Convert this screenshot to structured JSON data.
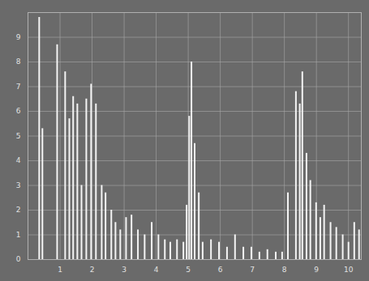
{
  "chart_data": {
    "type": "stem",
    "x": [
      0.35,
      0.45,
      0.91,
      1.16,
      1.29,
      1.41,
      1.54,
      1.67,
      1.82,
      1.97,
      2.12,
      2.3,
      2.42,
      2.6,
      2.73,
      2.88,
      3.06,
      3.23,
      3.43,
      3.64,
      3.86,
      4.07,
      4.27,
      4.44,
      4.65,
      4.85,
      4.95,
      5.03,
      5.1,
      5.2,
      5.33,
      5.45,
      5.71,
      5.96,
      6.21,
      6.46,
      6.72,
      6.97,
      7.22,
      7.47,
      7.73,
      7.93,
      8.11,
      8.36,
      8.48,
      8.56,
      8.69,
      8.81,
      8.99,
      9.12,
      9.24,
      9.44,
      9.62,
      9.82,
      10.0,
      10.18,
      10.33
    ],
    "values": [
      9.8,
      5.3,
      8.7,
      7.6,
      5.7,
      6.6,
      6.3,
      3.0,
      6.5,
      7.1,
      6.3,
      3.0,
      2.7,
      2.0,
      1.5,
      1.2,
      1.7,
      1.8,
      1.2,
      1.0,
      1.5,
      1.0,
      0.8,
      0.7,
      0.8,
      0.7,
      2.2,
      5.8,
      8.0,
      4.7,
      2.7,
      0.7,
      0.8,
      0.7,
      0.5,
      1.0,
      0.5,
      0.5,
      0.3,
      0.4,
      0.3,
      0.3,
      2.7,
      6.8,
      6.3,
      7.6,
      4.3,
      3.2,
      2.3,
      1.7,
      2.2,
      1.5,
      1.3,
      1.0,
      0.7,
      1.5,
      1.2
    ],
    "color": "#f4f4f4",
    "xlim": [
      0,
      10.4
    ],
    "xticks": [
      1,
      2,
      3,
      4,
      5,
      6,
      7,
      8,
      9,
      10
    ],
    "ylim": [
      0,
      10
    ],
    "yticks": [
      0,
      1,
      2,
      3,
      4,
      5,
      6,
      7,
      8,
      9
    ],
    "grid": true
  }
}
